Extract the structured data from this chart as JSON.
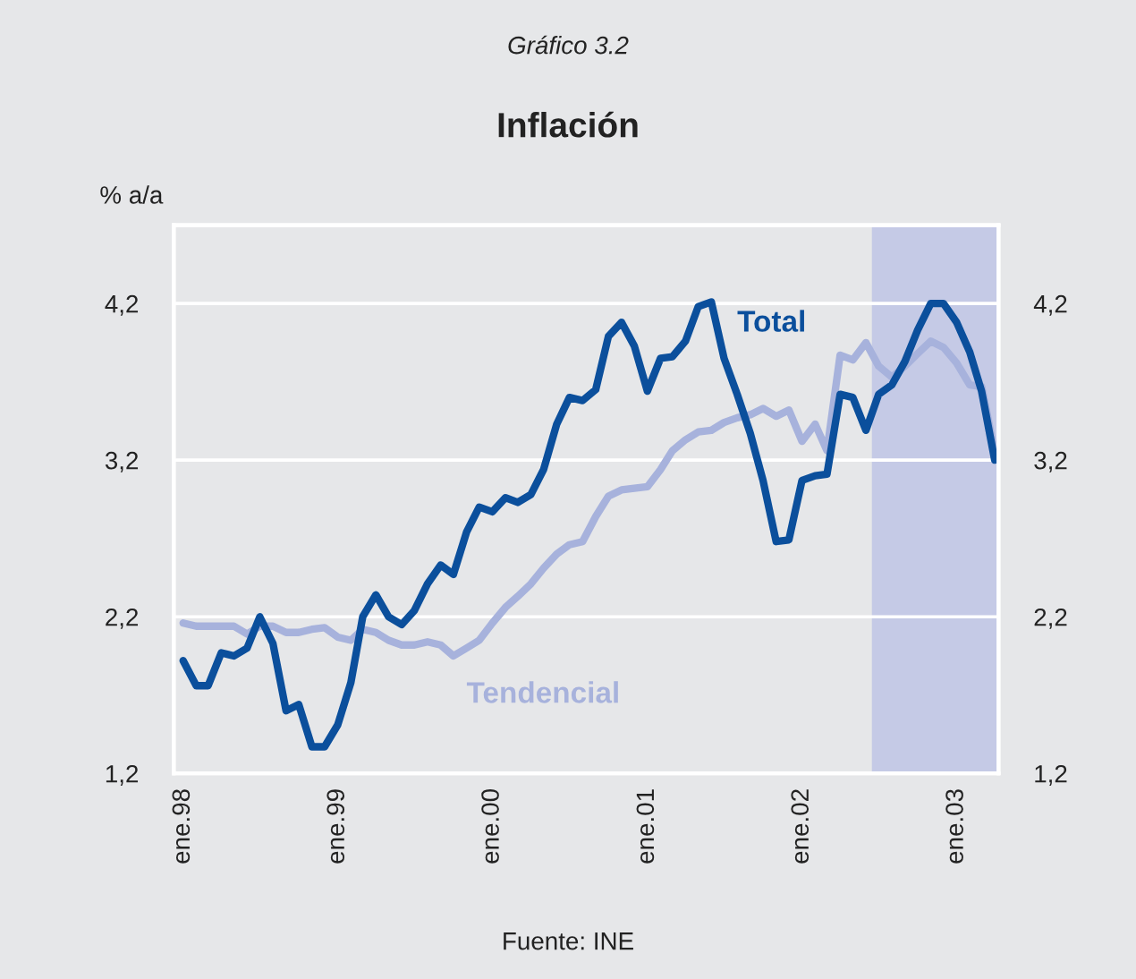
{
  "chart_data": {
    "type": "line",
    "subtitle": "Gráfico 3.2",
    "title": "Inflación",
    "ylabel": "% a/a",
    "x": [
      "1998-01",
      "1998-02",
      "1998-03",
      "1998-04",
      "1998-05",
      "1998-06",
      "1998-07",
      "1998-08",
      "1998-09",
      "1998-10",
      "1998-11",
      "1998-12",
      "1999-01",
      "1999-02",
      "1999-03",
      "1999-04",
      "1999-05",
      "1999-06",
      "1999-07",
      "1999-08",
      "1999-09",
      "1999-10",
      "1999-11",
      "1999-12",
      "2000-01",
      "2000-02",
      "2000-03",
      "2000-04",
      "2000-05",
      "2000-06",
      "2000-07",
      "2000-08",
      "2000-09",
      "2000-10",
      "2000-11",
      "2000-12",
      "2001-01",
      "2001-02",
      "2001-03",
      "2001-04",
      "2001-05",
      "2001-06",
      "2001-07",
      "2001-08",
      "2001-09",
      "2001-10",
      "2001-11",
      "2001-12",
      "2002-01",
      "2002-02",
      "2002-03",
      "2002-04",
      "2002-05",
      "2002-06",
      "2002-07",
      "2002-08",
      "2002-09",
      "2002-10",
      "2002-11",
      "2002-12",
      "2003-01",
      "2003-02",
      "2003-03",
      "2003-04"
    ],
    "series": [
      {
        "name": "Total",
        "color": "#0b4f9c",
        "values": [
          1.92,
          1.76,
          1.76,
          1.97,
          1.95,
          2.0,
          2.2,
          2.03,
          1.6,
          1.64,
          1.37,
          1.37,
          1.51,
          1.78,
          2.2,
          2.34,
          2.2,
          2.15,
          2.24,
          2.41,
          2.53,
          2.47,
          2.74,
          2.9,
          2.87,
          2.96,
          2.93,
          2.98,
          3.14,
          3.43,
          3.6,
          3.58,
          3.65,
          3.99,
          4.08,
          3.93,
          3.64,
          3.85,
          3.86,
          3.96,
          4.18,
          4.21,
          3.85,
          3.62,
          3.37,
          3.07,
          2.68,
          2.69,
          3.07,
          3.1,
          3.11,
          3.62,
          3.6,
          3.39,
          3.62,
          3.68,
          3.83,
          4.03,
          4.2,
          4.2,
          4.08,
          3.89,
          3.64,
          3.2
        ]
      },
      {
        "name": "Tendencial",
        "color": "#a7b2dc",
        "values": [
          2.16,
          2.14,
          2.14,
          2.14,
          2.14,
          2.09,
          2.14,
          2.14,
          2.1,
          2.1,
          2.12,
          2.13,
          2.07,
          2.05,
          2.12,
          2.1,
          2.05,
          2.02,
          2.02,
          2.04,
          2.02,
          1.95,
          2.0,
          2.05,
          2.16,
          2.26,
          2.33,
          2.41,
          2.51,
          2.6,
          2.66,
          2.68,
          2.84,
          2.97,
          3.01,
          3.02,
          3.03,
          3.14,
          3.26,
          3.33,
          3.38,
          3.39,
          3.44,
          3.47,
          3.49,
          3.53,
          3.48,
          3.52,
          3.32,
          3.43,
          3.26,
          3.87,
          3.84,
          3.95,
          3.8,
          3.73,
          3.8,
          3.88,
          3.96,
          3.92,
          3.82,
          3.68,
          3.67,
          3.25
        ]
      }
    ],
    "xlim": [
      "1997-12-10",
      "2003-04-10"
    ],
    "xticks": [
      {
        "value": "1998-01",
        "label": "ene.98"
      },
      {
        "value": "1999-01",
        "label": "ene.99"
      },
      {
        "value": "2000-01",
        "label": "ene.00"
      },
      {
        "value": "2001-01",
        "label": "ene.01"
      },
      {
        "value": "2002-01",
        "label": "ene.02"
      },
      {
        "value": "2003-01",
        "label": "ene.03"
      }
    ],
    "ylim": [
      1.2,
      4.7
    ],
    "yticks": [
      {
        "value": 1.2,
        "label": "1,2"
      },
      {
        "value": 2.2,
        "label": "2,2"
      },
      {
        "value": 3.2,
        "label": "3,2"
      },
      {
        "value": 4.2,
        "label": "4,2"
      }
    ],
    "y2lim": [
      1.2,
      4.7
    ],
    "y2ticks": [
      {
        "value": 1.2,
        "label": "1,2"
      },
      {
        "value": 2.2,
        "label": "2,2"
      },
      {
        "value": 3.2,
        "label": "3,2"
      },
      {
        "value": 4.2,
        "label": "4,2"
      }
    ],
    "bands": [
      {
        "axis": "x",
        "from": "2002-06-15",
        "to": "2003-04-10",
        "color": "#c5cae6"
      }
    ],
    "grid": "y",
    "legend": false,
    "marker": "none",
    "line_style": "solid",
    "annotations": [
      "Fuente: INE"
    ]
  }
}
